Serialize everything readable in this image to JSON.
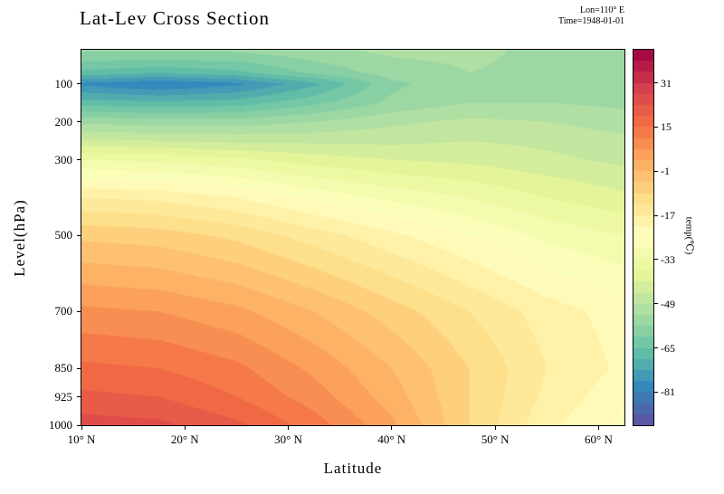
{
  "chart_data": {
    "type": "filled_contour",
    "title": "Lat-Lev Cross Section",
    "annotations": [
      "Lon=110° E",
      "Time=1948-01-01"
    ],
    "xlabel": "Latitude",
    "ylabel": "Level(hPa)",
    "x_range": [
      10,
      62.5
    ],
    "y_range": [
      10,
      1000
    ],
    "y_axis_inverted_pressure": true,
    "x_ticks": {
      "values": [
        10,
        20,
        30,
        40,
        50,
        60
      ],
      "labels": [
        "10° N",
        "20° N",
        "30° N",
        "40° N",
        "50° N",
        "60° N"
      ]
    },
    "y_ticks": {
      "values": [
        100,
        200,
        300,
        500,
        700,
        850,
        925,
        1000
      ],
      "labels": [
        "100",
        "200",
        "300",
        "500",
        "700",
        "850",
        "925",
        "1000"
      ]
    },
    "colorbar": {
      "label": "temp(℃)",
      "vmin": -93,
      "vmax": 43,
      "level_step": 4,
      "ticks": {
        "values": [
          31,
          15,
          -1,
          -17,
          -33,
          -49,
          -65,
          -81
        ],
        "labels": [
          "31",
          "15",
          "-1",
          "-17",
          "-33",
          "-49",
          "-65",
          "-81"
        ]
      },
      "stops": [
        "#5e4fa2",
        "#3288bd",
        "#66c2a5",
        "#abdda4",
        "#e6f598",
        "#ffffbf",
        "#fee08b",
        "#fdae61",
        "#f46d43",
        "#d53e4f",
        "#9e0142"
      ]
    },
    "grid": {
      "lats": [
        10,
        17.5,
        25,
        32.5,
        40,
        47.5,
        55,
        62.5
      ],
      "levels_hpa": [
        10,
        70,
        100,
        150,
        200,
        250,
        300,
        400,
        500,
        700,
        850,
        925,
        1000
      ],
      "temps_c": [
        [
          -56,
          -56,
          -56,
          -54,
          -52,
          -52,
          -54,
          -56
        ],
        [
          -66,
          -68,
          -66,
          -60,
          -55,
          -53,
          -54,
          -55
        ],
        [
          -78,
          -81,
          -78,
          -70,
          -58,
          -54,
          -54,
          -55
        ],
        [
          -67,
          -68,
          -67,
          -62,
          -56,
          -53,
          -53,
          -54
        ],
        [
          -54,
          -55,
          -55,
          -53,
          -50,
          -48,
          -49,
          -51
        ],
        [
          -44,
          -45,
          -46,
          -46,
          -46,
          -45,
          -46,
          -48
        ],
        [
          -33,
          -34,
          -36,
          -39,
          -41,
          -42,
          -44,
          -46
        ],
        [
          -17,
          -18,
          -21,
          -26,
          -30,
          -33,
          -37,
          -40
        ],
        [
          -6,
          -7,
          -10,
          -15,
          -20,
          -25,
          -30,
          -33
        ],
        [
          8,
          7,
          4,
          -1,
          -7,
          -13,
          -19,
          -23
        ],
        [
          16,
          15,
          12,
          6,
          -1,
          -9,
          -17,
          -22
        ],
        [
          20,
          19,
          15,
          9,
          1,
          -9,
          -18,
          -24
        ],
        [
          25,
          24,
          20,
          13,
          4,
          -9,
          -20,
          -26
        ]
      ]
    }
  }
}
